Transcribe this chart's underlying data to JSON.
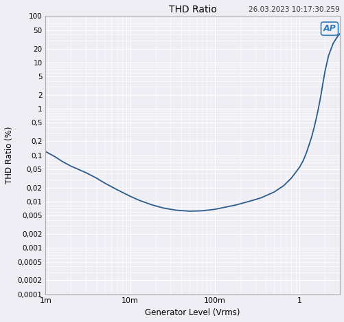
{
  "title": "THD Ratio",
  "timestamp": "26.03.2023 10:17:30.259",
  "xlabel": "Generator Level (Vrms)",
  "ylabel": "THD Ratio (%)",
  "xmin": 0.001,
  "xmax": 3.0,
  "ymin": 0.0001,
  "ymax": 100,
  "line_color": "#2a5b8b",
  "background_color": "#eeeef4",
  "grid_color": "#ffffff",
  "border_color": "#aaaaaa",
  "fig_facecolor": "#eeeef4",
  "x_ticks_labels": [
    "1m",
    "10m",
    "100m",
    "1"
  ],
  "x_ticks_values": [
    0.001,
    0.01,
    0.1,
    1.0
  ],
  "y_ticks_labels": [
    "100",
    "50",
    "20",
    "10",
    "5",
    "2",
    "1",
    "0,5",
    "0,2",
    "0,1",
    "0,05",
    "0,02",
    "0,01",
    "0,005",
    "0,002",
    "0,001",
    "0,0005",
    "0,0002",
    "0,0001"
  ],
  "y_ticks_values": [
    100,
    50,
    20,
    10,
    5,
    2,
    1,
    0.5,
    0.2,
    0.1,
    0.05,
    0.02,
    0.01,
    0.005,
    0.002,
    0.001,
    0.0005,
    0.0002,
    0.0001
  ],
  "curve_x": [
    0.001,
    0.0013,
    0.0016,
    0.002,
    0.003,
    0.004,
    0.005,
    0.007,
    0.01,
    0.013,
    0.018,
    0.025,
    0.035,
    0.05,
    0.07,
    0.1,
    0.13,
    0.18,
    0.25,
    0.35,
    0.5,
    0.65,
    0.8,
    1.0,
    1.1,
    1.2,
    1.3,
    1.4,
    1.5,
    1.6,
    1.7,
    1.8,
    1.9,
    2.0,
    2.2,
    2.5,
    2.8,
    3.0
  ],
  "curve_y": [
    0.12,
    0.092,
    0.072,
    0.058,
    0.042,
    0.032,
    0.025,
    0.018,
    0.013,
    0.0105,
    0.0085,
    0.0072,
    0.0065,
    0.0062,
    0.0063,
    0.0068,
    0.0075,
    0.0085,
    0.01,
    0.012,
    0.016,
    0.022,
    0.032,
    0.055,
    0.075,
    0.11,
    0.17,
    0.26,
    0.42,
    0.7,
    1.2,
    2.1,
    3.8,
    6.5,
    14.0,
    26.0,
    36.0,
    42.0
  ]
}
